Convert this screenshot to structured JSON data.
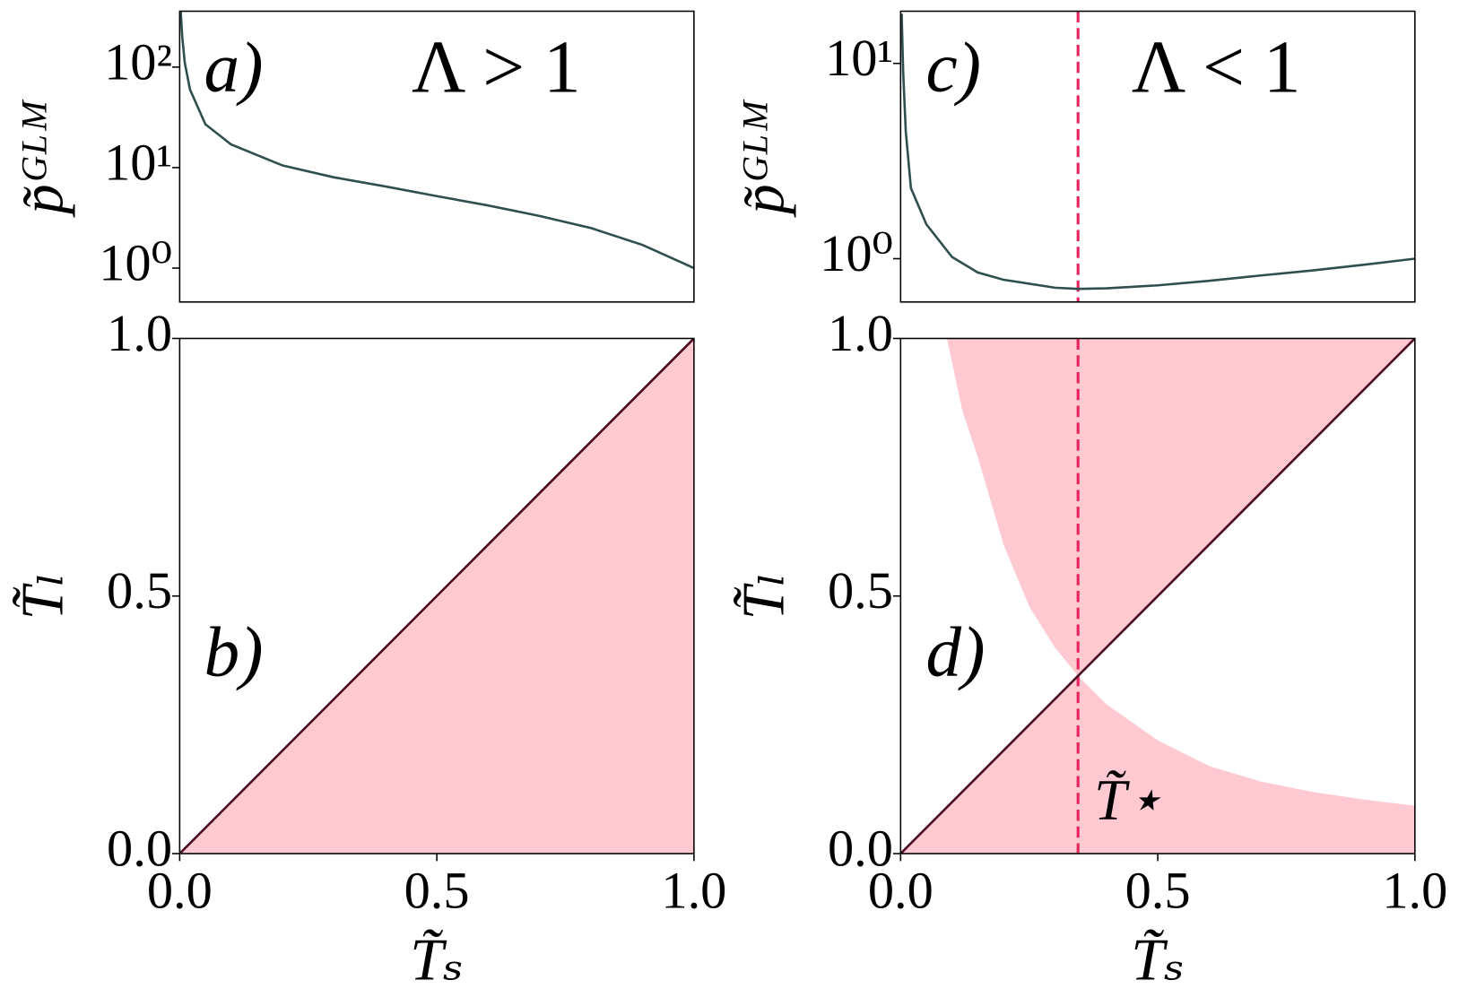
{
  "chart_data": [
    {
      "type": "line",
      "log_y": true,
      "ylabel": "p̃ᴳᴸᴹ",
      "annotations": [
        {
          "text": "a)",
          "color": "#000000"
        },
        {
          "text": "Λ > 1",
          "color": "#2f4f4f"
        }
      ],
      "x": [
        0.002,
        0.005,
        0.01,
        0.02,
        0.05,
        0.1,
        0.2,
        0.3,
        0.4,
        0.5,
        0.6,
        0.7,
        0.8,
        0.9,
        1.0
      ],
      "values": [
        360,
        200,
        110,
        60,
        27,
        17,
        10.5,
        8,
        6.5,
        5.2,
        4.2,
        3.3,
        2.5,
        1.7,
        1.0
      ],
      "color": "#2f4f4f",
      "xlim": [
        0,
        1
      ],
      "ylim": [
        0.46,
        360
      ],
      "yticks": [
        {
          "value": 1,
          "label": "10⁰"
        },
        {
          "value": 10,
          "label": "10¹"
        },
        {
          "value": 100,
          "label": "10²"
        }
      ]
    },
    {
      "type": "line",
      "xlabel": "T̃ₛ",
      "ylabel": "T̃ₗ",
      "annotations": [
        {
          "text": "b)",
          "color": "#000000"
        }
      ],
      "x": [
        0,
        1
      ],
      "values": [
        0,
        1
      ],
      "color": "#4a0a22",
      "fill": "below",
      "fill_color": "#ffc9d2",
      "xlim": [
        0,
        1
      ],
      "ylim": [
        0,
        1
      ],
      "xticks": [
        {
          "value": 0,
          "label": "0.0"
        },
        0.5,
        {
          "value": 1,
          "label": "1.0"
        }
      ],
      "yticks": [
        {
          "value": 0,
          "label": "0.0"
        },
        0.5,
        {
          "value": 1,
          "label": "1.0"
        }
      ]
    },
    {
      "type": "line",
      "log_y": true,
      "ylabel": "p̃ᴳᴸᴹ",
      "annotations": [
        {
          "text": "c)",
          "color": "#000000"
        },
        {
          "text": "Λ < 1",
          "color": "#2f4f4f"
        }
      ],
      "x": [
        0.002,
        0.005,
        0.01,
        0.02,
        0.05,
        0.1,
        0.15,
        0.2,
        0.3,
        0.345,
        0.4,
        0.5,
        0.6,
        0.7,
        0.8,
        0.9,
        1.0
      ],
      "values": [
        18,
        9,
        4.5,
        2.3,
        1.5,
        1.02,
        0.85,
        0.78,
        0.71,
        0.7,
        0.705,
        0.73,
        0.77,
        0.82,
        0.87,
        0.93,
        1.0
      ],
      "color": "#2f4f4f",
      "vline": 0.345,
      "vline_color": "#e8245e",
      "xlim": [
        0,
        1
      ],
      "ylim": [
        0.6,
        18.5
      ],
      "yticks": [
        {
          "value": 1,
          "label": "10⁰"
        },
        {
          "value": 10,
          "label": "10¹"
        }
      ]
    },
    {
      "type": "line",
      "xlabel": "T̃ₛ",
      "ylabel": "T̃ₗ",
      "annotations": [
        {
          "text": "d)",
          "color": "#000000"
        },
        {
          "text": "T̃⋆",
          "color": "#e8245e"
        }
      ],
      "x": [
        0,
        1
      ],
      "values": [
        0,
        1
      ],
      "color": "#4a0a22",
      "fill": "outside",
      "fill_color": "#ffc9d2",
      "boundary": {
        "x": [
          0.09,
          0.12,
          0.15,
          0.2,
          0.25,
          0.3,
          0.345,
          0.4,
          0.5,
          0.6,
          0.7,
          0.8,
          0.9,
          1.0
        ],
        "values": [
          1.0,
          0.86,
          0.77,
          0.6,
          0.48,
          0.4,
          0.345,
          0.29,
          0.22,
          0.17,
          0.14,
          0.12,
          0.105,
          0.093
        ]
      },
      "vline": 0.345,
      "vline_color": "#e8245e",
      "xlim": [
        0,
        1
      ],
      "ylim": [
        0,
        1
      ],
      "xticks": [
        {
          "value": 0,
          "label": "0.0"
        },
        0.5,
        {
          "value": 1,
          "label": "1.0"
        }
      ],
      "yticks": [
        {
          "value": 0,
          "label": "0.0"
        },
        0.5,
        {
          "value": 1,
          "label": "1.0"
        }
      ]
    }
  ]
}
